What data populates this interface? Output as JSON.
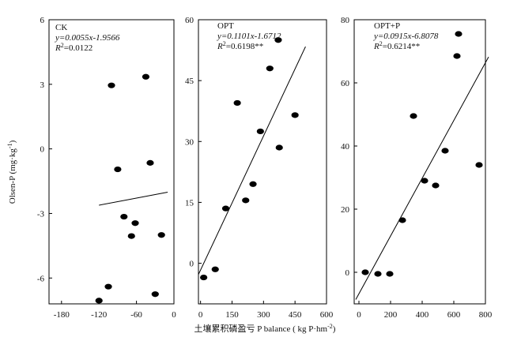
{
  "chart_data": [
    {
      "type": "scatter",
      "label": "CK",
      "equation": "y=0.0055x-1.9566",
      "r2_prefix": "R",
      "r2_sup": "2",
      "r2_value": "=0.0122",
      "xlim": [
        -200,
        0
      ],
      "ylim": [
        -7.2,
        6
      ],
      "xticks": [
        -180,
        -120,
        -60,
        0
      ],
      "yticks": [
        -6,
        -3,
        0,
        3,
        6
      ],
      "points": [
        {
          "x": -100,
          "y": 2.95
        },
        {
          "x": -45,
          "y": 3.35
        },
        {
          "x": -38,
          "y": -0.65
        },
        {
          "x": -90,
          "y": -0.95
        },
        {
          "x": -80,
          "y": -3.15
        },
        {
          "x": -62,
          "y": -3.45
        },
        {
          "x": -68,
          "y": -4.05
        },
        {
          "x": -20,
          "y": -4.0
        },
        {
          "x": -105,
          "y": -6.4
        },
        {
          "x": -120,
          "y": -7.05
        },
        {
          "x": -30,
          "y": -6.75
        }
      ],
      "fit": {
        "x": [
          -120,
          -10
        ]
      }
    },
    {
      "type": "scatter",
      "label": "OPT",
      "equation": "y=0.1101x-1.6712",
      "r2_prefix": "R",
      "r2_sup": "2",
      "r2_value": "=0.6198**",
      "xlim": [
        -10,
        600
      ],
      "ylim": [
        -10,
        60
      ],
      "xticks": [
        0,
        150,
        300,
        450,
        600
      ],
      "yticks": [
        0,
        15,
        30,
        45,
        60
      ],
      "points": [
        {
          "x": 15,
          "y": -3.5
        },
        {
          "x": 70,
          "y": -1.5
        },
        {
          "x": 120,
          "y": 13.5
        },
        {
          "x": 215,
          "y": 15.5
        },
        {
          "x": 250,
          "y": 19.5
        },
        {
          "x": 285,
          "y": 32.5
        },
        {
          "x": 175,
          "y": 39.5
        },
        {
          "x": 330,
          "y": 48
        },
        {
          "x": 375,
          "y": 28.5
        },
        {
          "x": 370,
          "y": 55
        },
        {
          "x": 450,
          "y": 36.5
        }
      ],
      "fit": {
        "x": [
          -10,
          500
        ]
      }
    },
    {
      "type": "scatter",
      "label": "OPT+P",
      "equation": "y=0.0915x-6.8078",
      "r2_prefix": "R",
      "r2_sup": "2",
      "r2_value": "=0.6214**",
      "xlim": [
        -30,
        800
      ],
      "ylim": [
        -10,
        80
      ],
      "xticks": [
        0,
        200,
        400,
        600,
        800
      ],
      "yticks": [
        0,
        20,
        40,
        60,
        80
      ],
      "points": [
        {
          "x": 40,
          "y": 0
        },
        {
          "x": 120,
          "y": -0.5
        },
        {
          "x": 195,
          "y": -0.5
        },
        {
          "x": 275,
          "y": 16.5
        },
        {
          "x": 345,
          "y": 49.5
        },
        {
          "x": 415,
          "y": 29
        },
        {
          "x": 485,
          "y": 27.5
        },
        {
          "x": 545,
          "y": 38.5
        },
        {
          "x": 620,
          "y": 68.5
        },
        {
          "x": 630,
          "y": 75.5
        },
        {
          "x": 760,
          "y": 34
        }
      ],
      "fit": {
        "x": [
          -20,
          820
        ]
      }
    }
  ],
  "axes": {
    "ylabel_main": "Olsen-P (mg·kg",
    "ylabel_sup": "-1",
    "ylabel_end": ")",
    "xlabel_main": "土壤累积磷盈亏 P  balance ( kg P·hm",
    "xlabel_sup": "-2",
    "xlabel_end": ")"
  },
  "colors": {
    "marker": "#000000",
    "line": "#000000",
    "axis": "#000000"
  }
}
